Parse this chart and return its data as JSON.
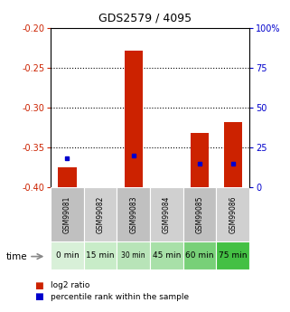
{
  "title": "GDS2579 / 4095",
  "samples": [
    "GSM99081",
    "GSM99082",
    "GSM99083",
    "GSM99084",
    "GSM99085",
    "GSM99086"
  ],
  "time_labels": [
    "0 min",
    "15 min",
    "30 min",
    "45 min",
    "60 min",
    "75 min"
  ],
  "time_colors": [
    "#d8f0d8",
    "#c8ecc8",
    "#b8e4b8",
    "#a8e0a8",
    "#78d078",
    "#44c044"
  ],
  "log2_values": [
    -0.375,
    null,
    -0.228,
    null,
    -0.332,
    -0.318
  ],
  "log2_base": -0.4,
  "percentile_values": [
    18.0,
    null,
    20.0,
    null,
    15.0,
    15.0
  ],
  "left_ylim": [
    -0.4,
    -0.2
  ],
  "left_yticks": [
    -0.4,
    -0.35,
    -0.3,
    -0.25,
    -0.2
  ],
  "right_yticks": [
    0,
    25,
    50,
    75,
    100
  ],
  "grid_values": [
    -0.25,
    -0.3,
    -0.35
  ],
  "bar_color": "#cc2200",
  "dot_color": "#0000cc",
  "label_color_red": "#cc2200",
  "label_color_blue": "#0000cc",
  "gray_colors": [
    "#c0c0c0",
    "#d0d0d0"
  ],
  "legend_label_red": "log2 ratio",
  "legend_label_blue": "percentile rank within the sample"
}
